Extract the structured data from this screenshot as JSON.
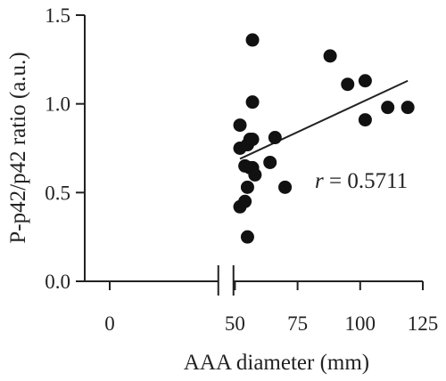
{
  "chart_data": {
    "type": "scatter",
    "title": "",
    "xlabel": "AAA diameter (mm)",
    "ylabel": "P-p42/p42 ratio (a.u.)",
    "xlim": [
      0,
      125
    ],
    "ylim": [
      0,
      1.5
    ],
    "x_ticks": [
      0,
      50,
      75,
      100,
      125
    ],
    "x_tick_labels": [
      "0",
      "50",
      "75",
      "100",
      "125"
    ],
    "y_ticks": [
      0,
      0.5,
      1.0,
      1.5
    ],
    "y_tick_labels": [
      "0.0",
      "0.5",
      "1.0",
      "1.5"
    ],
    "x_axis_break": [
      43,
      50
    ],
    "grid": false,
    "annotation": {
      "italic_part": "r",
      "rest": " = 0.5711"
    },
    "points": [
      {
        "x": 52,
        "y": 0.42
      },
      {
        "x": 52,
        "y": 0.75
      },
      {
        "x": 52,
        "y": 0.88
      },
      {
        "x": 54,
        "y": 0.45
      },
      {
        "x": 54,
        "y": 0.65
      },
      {
        "x": 55,
        "y": 0.25
      },
      {
        "x": 55,
        "y": 0.53
      },
      {
        "x": 55,
        "y": 0.77
      },
      {
        "x": 56,
        "y": 0.8
      },
      {
        "x": 56,
        "y": 0.64
      },
      {
        "x": 57,
        "y": 1.36
      },
      {
        "x": 57,
        "y": 1.01
      },
      {
        "x": 57,
        "y": 0.8
      },
      {
        "x": 57,
        "y": 0.64
      },
      {
        "x": 58,
        "y": 0.6
      },
      {
        "x": 64,
        "y": 0.67
      },
      {
        "x": 66,
        "y": 0.81
      },
      {
        "x": 70,
        "y": 0.53
      },
      {
        "x": 88,
        "y": 1.27
      },
      {
        "x": 95,
        "y": 1.11
      },
      {
        "x": 102,
        "y": 1.13
      },
      {
        "x": 102,
        "y": 0.91
      },
      {
        "x": 111,
        "y": 0.98
      },
      {
        "x": 119,
        "y": 0.98
      }
    ],
    "trendline": {
      "x": [
        52,
        119
      ],
      "y": [
        0.69,
        1.13
      ]
    },
    "colors": {
      "points": "#111111",
      "axis": "#222222"
    }
  }
}
